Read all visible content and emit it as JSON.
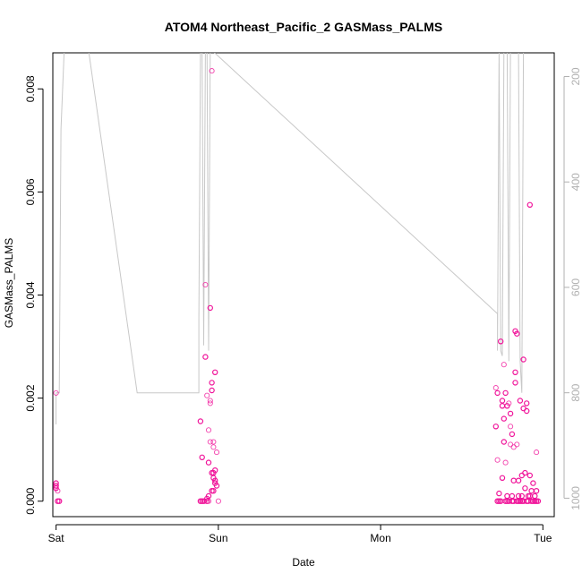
{
  "chart_data": {
    "type": "scatter",
    "title": "ATOM4 Northeast_Pacific_2 GASMass_PALMS",
    "xlabel": "Date",
    "ylabel": "GASMass_PALMS",
    "x_ticks": [
      "Sat",
      "Sun",
      "Mon",
      "Tue"
    ],
    "x_range_days": [
      -0.02,
      3.07
    ],
    "y_ticks": [
      "0.000",
      "0.002",
      "0.004",
      "0.006",
      "0.008"
    ],
    "ylim": [
      -0.0003,
      0.0087
    ],
    "y2_ticks": [
      "200",
      "400",
      "600",
      "800",
      "1000"
    ],
    "y2lim": [
      1035,
      155
    ],
    "y2_inverted": true,
    "colors": {
      "points": "#f0149a",
      "line": "#c8c8c8",
      "axis": "#000000",
      "right_axis": "#b0b0b0"
    },
    "points": {
      "x": [
        0.0,
        0.0,
        0.0,
        0.0,
        0.01,
        0.01,
        0.02,
        0.89,
        0.89,
        0.9,
        0.9,
        0.91,
        0.92,
        0.92,
        0.93,
        0.93,
        0.93,
        0.94,
        0.94,
        0.94,
        0.94,
        0.95,
        0.95,
        0.95,
        0.95,
        0.96,
        0.96,
        0.96,
        0.96,
        0.96,
        0.97,
        0.97,
        0.97,
        0.97,
        0.97,
        0.98,
        0.98,
        0.98,
        0.98,
        0.99,
        0.99,
        1.0,
        2.71,
        2.71,
        2.72,
        2.72,
        2.72,
        2.73,
        2.73,
        2.74,
        2.74,
        2.75,
        2.75,
        2.75,
        2.76,
        2.76,
        2.76,
        2.77,
        2.77,
        2.77,
        2.78,
        2.78,
        2.78,
        2.79,
        2.79,
        2.8,
        2.8,
        2.8,
        2.81,
        2.81,
        2.81,
        2.82,
        2.82,
        2.82,
        2.83,
        2.83,
        2.83,
        2.84,
        2.84,
        2.84,
        2.85,
        2.85,
        2.85,
        2.86,
        2.86,
        2.87,
        2.87,
        2.87,
        2.88,
        2.88,
        2.88,
        2.89,
        2.89,
        2.9,
        2.9,
        2.9,
        2.91,
        2.91,
        2.92,
        2.92,
        2.92,
        2.93,
        2.93,
        2.94,
        2.94,
        2.95,
        2.95,
        2.96,
        2.96,
        2.96,
        2.97
      ],
      "y": [
        0.0021,
        0.00035,
        0.0003,
        0.00025,
        0.0002,
        0.0,
        0.0,
        0.0,
        0.00155,
        0.0,
        0.00085,
        0.0,
        0.0042,
        0.0028,
        0.00205,
        0.0,
        5e-05,
        0.0001,
        0.0,
        0.00075,
        0.00138,
        0.00115,
        0.0019,
        0.00375,
        0.00195,
        0.00835,
        0.00215,
        0.0023,
        0.0002,
        0.00055,
        0.00105,
        0.00115,
        0.00045,
        0.00055,
        0.0002,
        0.00035,
        0.0025,
        0.0004,
        0.0006,
        0.00095,
        0.0003,
        0.0,
        0.0022,
        0.00145,
        0.0021,
        0.0008,
        0.0,
        0.0,
        0.00015,
        0.0,
        0.0031,
        0.00045,
        0.00195,
        0.00185,
        0.00265,
        0.0016,
        0.00115,
        0.00075,
        0.0021,
        0.0,
        0.00185,
        0.0001,
        0.0,
        0.0,
        0.0019,
        0.0017,
        0.0011,
        0.00145,
        0.0,
        0.0013,
        0.0001,
        0.0,
        0.00105,
        0.0004,
        0.0025,
        0.0033,
        0.0023,
        0.0011,
        0.0,
        0.00325,
        0.0004,
        0.0,
        0.0001,
        0.00195,
        0.0,
        0.0001,
        0.0005,
        0.0,
        0.0,
        0.00275,
        0.0018,
        0.00055,
        0.00025,
        0.0,
        0.00175,
        0.0019,
        0.0,
        0.0001,
        0.00575,
        0.0005,
        0.0001,
        0.0,
        0.0002,
        0.00035,
        0.0,
        0.0,
        0.0001,
        0.0,
        0.00095,
        0.0002,
        0.0
      ],
      "opacity_dark": [
        0,
        1,
        1,
        1,
        0,
        1,
        1,
        1,
        1,
        1,
        1,
        1,
        0,
        1,
        0,
        1,
        1,
        1,
        0,
        1,
        0,
        0,
        0,
        1,
        0,
        0,
        1,
        1,
        1,
        1,
        0,
        0,
        1,
        1,
        1,
        1,
        1,
        1,
        1,
        0,
        1,
        0,
        0,
        1,
        1,
        0,
        1,
        1,
        1,
        1,
        1,
        1,
        1,
        1,
        0,
        1,
        1,
        0,
        1,
        1,
        1,
        1,
        1,
        1,
        0,
        1,
        0,
        0,
        1,
        1,
        1,
        1,
        0,
        1,
        1,
        1,
        1,
        0,
        1,
        1,
        1,
        1,
        1,
        1,
        1,
        1,
        1,
        1,
        1,
        1,
        1,
        1,
        1,
        1,
        1,
        1,
        1,
        1,
        1,
        1,
        1,
        1,
        1,
        1,
        1,
        1,
        1,
        1,
        0,
        1,
        1
      ]
    },
    "line": {
      "x": [
        0.0,
        0.0,
        0.02,
        0.03,
        0.05,
        0.07,
        0.2,
        0.5,
        0.88,
        0.88,
        0.89,
        0.9,
        0.91,
        0.92,
        0.93,
        0.94,
        0.95,
        0.96,
        2.72,
        2.72,
        2.73,
        2.74,
        2.75,
        2.76,
        2.77,
        2.78,
        2.79,
        2.8,
        2.81,
        2.82,
        2.83,
        2.84,
        2.85,
        2.86,
        2.87,
        2.88,
        2.89,
        2.9,
        2.91,
        2.92,
        2.93,
        2.94,
        2.95,
        2.96,
        2.97,
        2.98
      ],
      "y": [
        860,
        800,
        800,
        300,
        150,
        150,
        150,
        800,
        800,
        660,
        150,
        150,
        710,
        150,
        150,
        720,
        150,
        150,
        650,
        720,
        150,
        720,
        730,
        150,
        150,
        150,
        740,
        150,
        150,
        150,
        150,
        150,
        150,
        740,
        800,
        150,
        150,
        150,
        150,
        150,
        150,
        150,
        150,
        150,
        150,
        150
      ]
    }
  }
}
